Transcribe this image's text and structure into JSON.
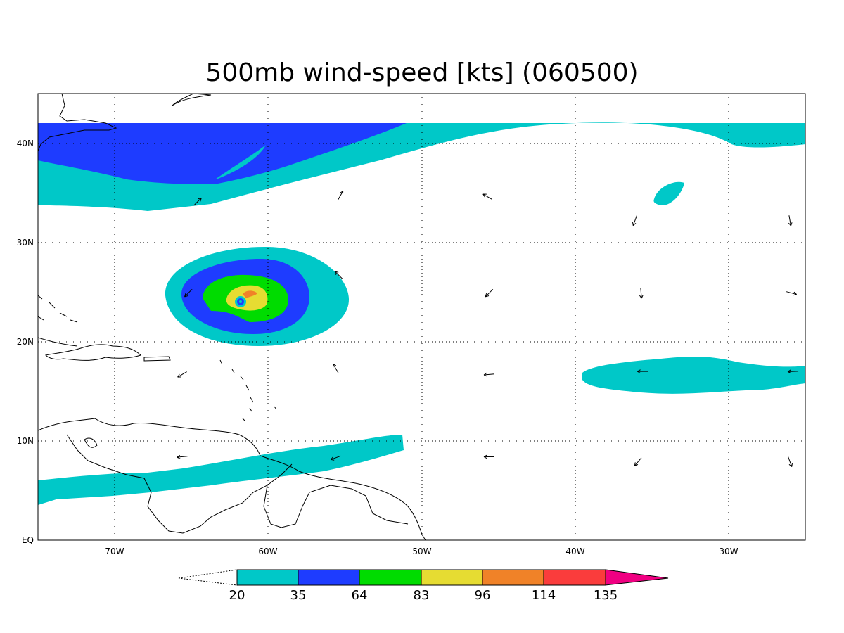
{
  "title": "500mb wind-speed [kts] (060500)",
  "map": {
    "lon_range": [
      -75,
      -25
    ],
    "lat_range": [
      0,
      45
    ],
    "y_ticks": [
      {
        "lat": 40,
        "label": "40N"
      },
      {
        "lat": 30,
        "label": "30N"
      },
      {
        "lat": 20,
        "label": "20N"
      },
      {
        "lat": 10,
        "label": "10N"
      },
      {
        "lat": 0,
        "label": "EQ"
      }
    ],
    "x_ticks": [
      {
        "lon": -70,
        "label": "70W"
      },
      {
        "lon": -60,
        "label": "60W"
      },
      {
        "lon": -50,
        "label": "50W"
      },
      {
        "lon": -40,
        "label": "40W"
      },
      {
        "lon": -30,
        "label": "30W"
      }
    ],
    "grid": "dotted"
  },
  "colorbar": {
    "levels": [
      "20",
      "35",
      "64",
      "83",
      "96",
      "114",
      "135"
    ],
    "colors": [
      "#00c8c8",
      "#1e3cff",
      "#00dc00",
      "#e6dc32",
      "#f08228",
      "#fa3c3c",
      "#f00082"
    ],
    "open_ends": "both"
  },
  "wind_vectors": [
    {
      "lon": -64.6,
      "lat": 34.1,
      "dir_deg": 45
    },
    {
      "lon": -55.3,
      "lat": 34.7,
      "dir_deg": 30
    },
    {
      "lon": -45.7,
      "lat": 34.6,
      "dir_deg": 300
    },
    {
      "lon": -36.1,
      "lat": 32.2,
      "dir_deg": 200
    },
    {
      "lon": -26.0,
      "lat": 32.2,
      "dir_deg": 170
    },
    {
      "lon": -65.2,
      "lat": 24.9,
      "dir_deg": 225
    },
    {
      "lon": -55.4,
      "lat": 26.7,
      "dir_deg": 315
    },
    {
      "lon": -45.6,
      "lat": 24.9,
      "dir_deg": 225
    },
    {
      "lon": -35.7,
      "lat": 24.9,
      "dir_deg": 175
    },
    {
      "lon": -25.9,
      "lat": 24.9,
      "dir_deg": 105
    },
    {
      "lon": -65.6,
      "lat": 16.7,
      "dir_deg": 240
    },
    {
      "lon": -55.6,
      "lat": 17.3,
      "dir_deg": 330
    },
    {
      "lon": -45.6,
      "lat": 16.7,
      "dir_deg": 265
    },
    {
      "lon": -35.6,
      "lat": 17.0,
      "dir_deg": 270
    },
    {
      "lon": -25.8,
      "lat": 17.0,
      "dir_deg": 268
    },
    {
      "lon": -65.6,
      "lat": 8.4,
      "dir_deg": 265
    },
    {
      "lon": -55.6,
      "lat": 8.3,
      "dir_deg": 250
    },
    {
      "lon": -45.6,
      "lat": 8.4,
      "dir_deg": 270
    },
    {
      "lon": -35.9,
      "lat": 7.9,
      "dir_deg": 220
    },
    {
      "lon": -26.0,
      "lat": 7.9,
      "dir_deg": 160
    }
  ]
}
